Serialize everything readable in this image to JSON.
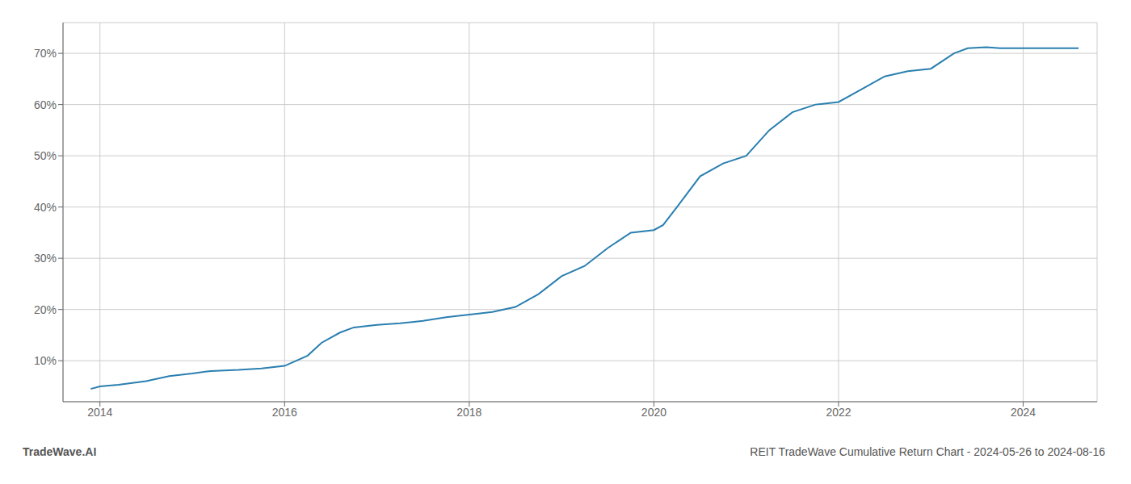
{
  "chart_data": {
    "type": "line",
    "x": [
      2013.9,
      2014.0,
      2014.2,
      2014.5,
      2014.75,
      2015.0,
      2015.2,
      2015.5,
      2015.75,
      2016.0,
      2016.25,
      2016.4,
      2016.6,
      2016.75,
      2017.0,
      2017.25,
      2017.5,
      2017.75,
      2018.0,
      2018.1,
      2018.25,
      2018.5,
      2018.75,
      2019.0,
      2019.25,
      2019.5,
      2019.75,
      2020.0,
      2020.1,
      2020.25,
      2020.5,
      2020.75,
      2021.0,
      2021.25,
      2021.5,
      2021.75,
      2022.0,
      2022.25,
      2022.5,
      2022.75,
      2023.0,
      2023.25,
      2023.4,
      2023.6,
      2023.75,
      2024.0,
      2024.3,
      2024.6
    ],
    "values": [
      4.5,
      5.0,
      5.3,
      6.0,
      7.0,
      7.5,
      8.0,
      8.2,
      8.5,
      9.0,
      11.0,
      13.5,
      15.5,
      16.5,
      17.0,
      17.3,
      17.8,
      18.5,
      19.0,
      19.2,
      19.5,
      20.5,
      23.0,
      26.5,
      28.5,
      32.0,
      35.0,
      35.5,
      36.5,
      40.0,
      46.0,
      48.5,
      50.0,
      55.0,
      58.5,
      60.0,
      60.5,
      63.0,
      65.5,
      66.5,
      67.0,
      70.0,
      71.0,
      71.2,
      71.0,
      71.0,
      71.0,
      71.0
    ],
    "color": "#2a7fb0",
    "xlim": [
      2013.6,
      2024.8
    ],
    "ylim": [
      2,
      76
    ],
    "xticks": [
      2014,
      2016,
      2018,
      2020,
      2022,
      2024
    ],
    "yticks": [
      {
        "value": 10,
        "label": "10%"
      },
      {
        "value": 20,
        "label": "20%"
      },
      {
        "value": 30,
        "label": "30%"
      },
      {
        "value": 40,
        "label": "40%"
      },
      {
        "value": 50,
        "label": "50%"
      },
      {
        "value": 60,
        "label": "60%"
      },
      {
        "value": 70,
        "label": "70%"
      }
    ],
    "grid": true,
    "annotations": [
      "TradeWave.AI",
      "REIT TradeWave Cumulative Return Chart - 2024-05-26 to 2024-08-16"
    ]
  }
}
